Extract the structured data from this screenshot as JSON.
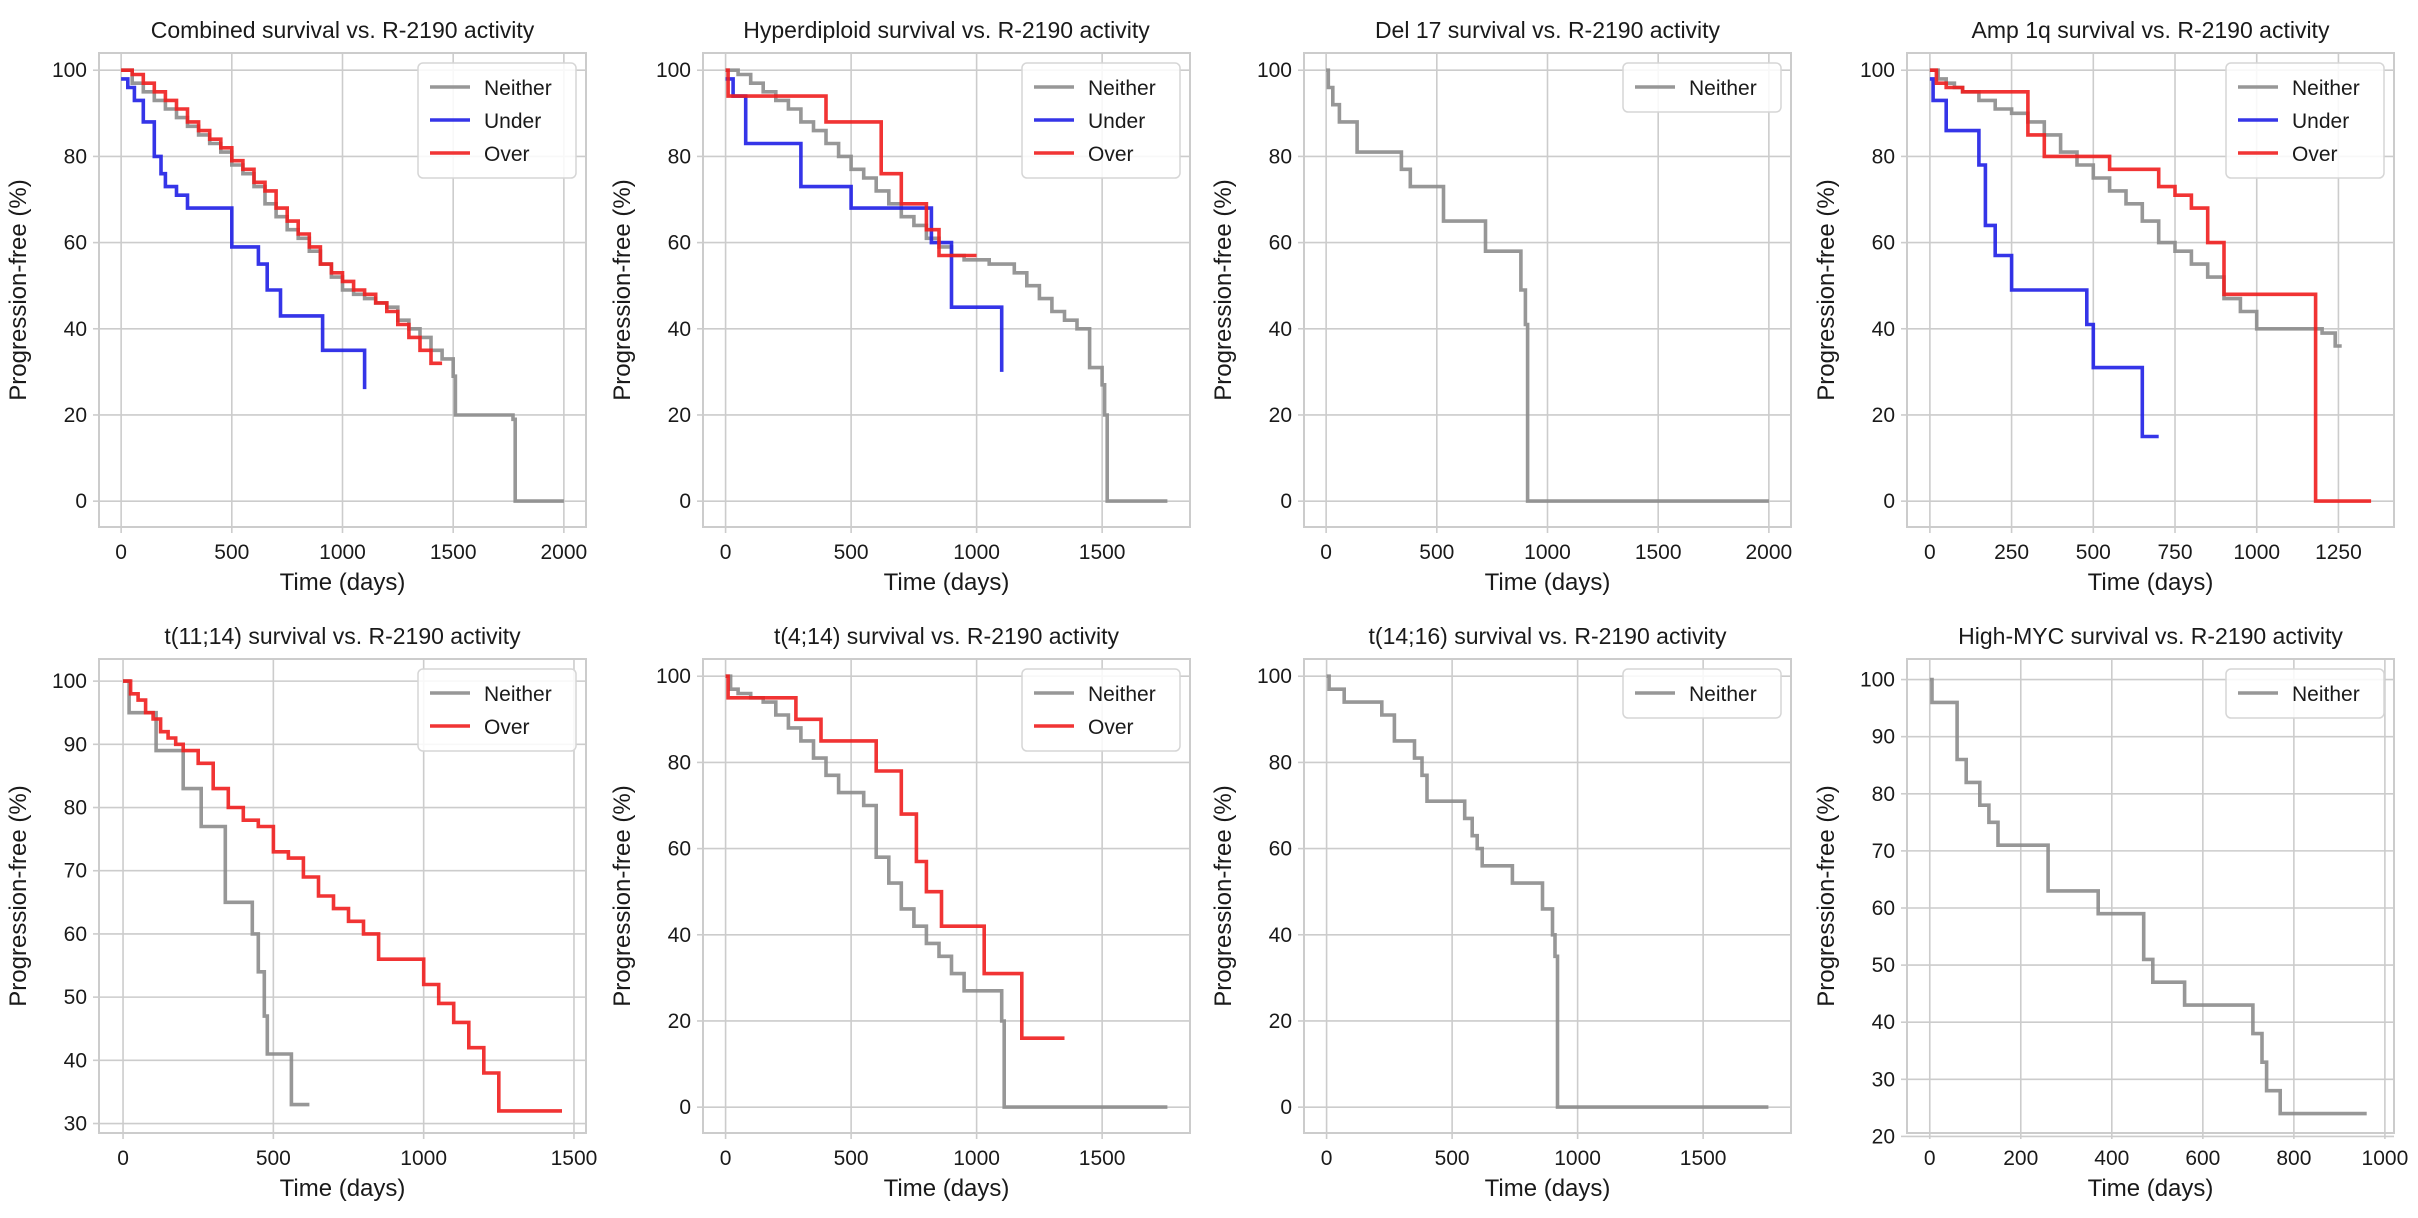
{
  "colors": {
    "Neither": "#8c8c8c",
    "Under": "#1f1fe6",
    "Over": "#f01e1e"
  },
  "chart_data": [
    {
      "type": "line",
      "title": "Combined survival vs. R-2190 activity",
      "xlabel": "Time (days)",
      "ylabel": "Progression-free (%)",
      "xlim": [
        -100,
        2100
      ],
      "ylim": [
        -6,
        104
      ],
      "xticks": [
        0,
        500,
        1000,
        1500,
        2000
      ],
      "yticks": [
        0,
        20,
        40,
        60,
        80,
        100
      ],
      "grid": true,
      "legend_position": "top-right",
      "series": [
        {
          "name": "Neither",
          "x": [
            0,
            50,
            100,
            150,
            200,
            250,
            300,
            350,
            400,
            450,
            500,
            550,
            600,
            650,
            700,
            750,
            800,
            850,
            900,
            950,
            1000,
            1050,
            1100,
            1150,
            1200,
            1250,
            1300,
            1350,
            1400,
            1450,
            1500,
            1510,
            1770,
            1780,
            2000
          ],
          "y": [
            100,
            97,
            95,
            93,
            91,
            89,
            87,
            85,
            83,
            81,
            78,
            76,
            73,
            69,
            66,
            63,
            61,
            58,
            55,
            52,
            49,
            48,
            47,
            46,
            45,
            42,
            40,
            38,
            35,
            33,
            29,
            20,
            19,
            0,
            0
          ]
        },
        {
          "name": "Under",
          "x": [
            0,
            30,
            60,
            100,
            150,
            180,
            200,
            250,
            300,
            350,
            400,
            500,
            620,
            660,
            720,
            910,
            1100
          ],
          "y": [
            98,
            96,
            93,
            88,
            80,
            76,
            73,
            71,
            68,
            68,
            68,
            59,
            55,
            49,
            43,
            35,
            26
          ]
        },
        {
          "name": "Over",
          "x": [
            0,
            50,
            100,
            150,
            200,
            250,
            300,
            350,
            400,
            450,
            500,
            550,
            600,
            650,
            700,
            750,
            800,
            850,
            900,
            950,
            1000,
            1050,
            1100,
            1150,
            1200,
            1250,
            1300,
            1350,
            1400,
            1450
          ],
          "y": [
            100,
            99,
            97,
            95,
            93,
            91,
            88,
            86,
            84,
            82,
            79,
            77,
            74,
            72,
            68,
            65,
            62,
            59,
            55,
            53,
            51,
            49,
            48,
            46,
            44,
            41,
            38,
            35,
            32,
            32
          ]
        }
      ]
    },
    {
      "type": "line",
      "title": "Hyperdiploid survival vs. R-2190 activity",
      "xlabel": "Time (days)",
      "ylabel": "Progression-free (%)",
      "xlim": [
        -90,
        1850
      ],
      "ylim": [
        -6,
        104
      ],
      "xticks": [
        0,
        500,
        1000,
        1500
      ],
      "yticks": [
        0,
        20,
        40,
        60,
        80,
        100
      ],
      "grid": true,
      "legend_position": "top-right",
      "series": [
        {
          "name": "Neither",
          "x": [
            0,
            50,
            100,
            150,
            200,
            250,
            300,
            350,
            400,
            450,
            500,
            550,
            600,
            650,
            700,
            750,
            800,
            850,
            900,
            950,
            1000,
            1050,
            1100,
            1150,
            1200,
            1250,
            1300,
            1350,
            1400,
            1450,
            1500,
            1510,
            1520,
            1760
          ],
          "y": [
            100,
            99,
            97,
            95,
            93,
            91,
            88,
            86,
            83,
            80,
            77,
            75,
            72,
            69,
            66,
            64,
            61,
            59,
            57,
            56,
            56,
            55,
            55,
            53,
            50,
            47,
            44,
            42,
            40,
            31,
            27,
            20,
            0,
            0
          ]
        },
        {
          "name": "Under",
          "x": [
            0,
            30,
            80,
            150,
            300,
            500,
            820,
            900,
            1100
          ],
          "y": [
            98,
            94,
            83,
            83,
            73,
            68,
            60,
            45,
            30
          ]
        },
        {
          "name": "Over",
          "x": [
            0,
            10,
            300,
            400,
            600,
            620,
            700,
            800,
            850,
            1000
          ],
          "y": [
            100,
            94,
            94,
            88,
            88,
            76,
            69,
            63,
            57,
            57
          ]
        }
      ]
    },
    {
      "type": "line",
      "title": "Del 17 survival vs. R-2190 activity",
      "xlabel": "Time (days)",
      "ylabel": "Progression-free (%)",
      "xlim": [
        -100,
        2100
      ],
      "ylim": [
        -6,
        104
      ],
      "xticks": [
        0,
        500,
        1000,
        1500,
        2000
      ],
      "yticks": [
        0,
        20,
        40,
        60,
        80,
        100
      ],
      "grid": true,
      "legend_position": "top-right",
      "series": [
        {
          "name": "Neither",
          "x": [
            0,
            10,
            30,
            60,
            140,
            340,
            380,
            530,
            720,
            880,
            900,
            910,
            2000
          ],
          "y": [
            100,
            96,
            92,
            88,
            81,
            77,
            73,
            65,
            58,
            49,
            41,
            0,
            0
          ]
        }
      ]
    },
    {
      "type": "line",
      "title": "Amp 1q survival vs. R-2190 activity",
      "xlabel": "Time (days)",
      "ylabel": "Progression-free (%)",
      "xlim": [
        -70,
        1420
      ],
      "ylim": [
        -6,
        104
      ],
      "xticks": [
        0,
        250,
        500,
        750,
        1000,
        1250
      ],
      "yticks": [
        0,
        20,
        40,
        60,
        80,
        100
      ],
      "grid": true,
      "legend_position": "top-right",
      "series": [
        {
          "name": "Neither",
          "x": [
            0,
            25,
            50,
            75,
            100,
            150,
            200,
            250,
            300,
            350,
            400,
            450,
            500,
            550,
            600,
            650,
            700,
            750,
            800,
            850,
            900,
            950,
            1000,
            1100,
            1200,
            1240,
            1260
          ],
          "y": [
            100,
            98,
            97,
            96,
            95,
            93,
            91,
            90,
            88,
            85,
            81,
            78,
            75,
            72,
            69,
            65,
            60,
            58,
            55,
            52,
            47,
            44,
            40,
            40,
            39,
            36,
            36
          ]
        },
        {
          "name": "Under",
          "x": [
            0,
            10,
            50,
            150,
            170,
            200,
            250,
            300,
            480,
            500,
            650,
            700
          ],
          "y": [
            98,
            93,
            86,
            78,
            64,
            57,
            49,
            49,
            41,
            31,
            15,
            15
          ]
        },
        {
          "name": "Over",
          "x": [
            0,
            20,
            50,
            100,
            150,
            300,
            350,
            400,
            550,
            700,
            750,
            800,
            850,
            900,
            1180,
            1350
          ],
          "y": [
            100,
            97,
            96,
            95,
            95,
            85,
            80,
            80,
            77,
            73,
            71,
            68,
            60,
            48,
            0,
            0
          ]
        }
      ]
    },
    {
      "type": "line",
      "title": "t(11;14) survival vs. R-2190 activity",
      "xlabel": "Time (days)",
      "ylabel": "Progression-free (%)",
      "xlim": [
        -80,
        1540
      ],
      "ylim": [
        28.5,
        103.5
      ],
      "xticks": [
        0,
        500,
        1000,
        1500
      ],
      "yticks": [
        30,
        40,
        50,
        60,
        70,
        80,
        90,
        100
      ],
      "grid": true,
      "legend_position": "top-right",
      "series": [
        {
          "name": "Neither",
          "x": [
            0,
            20,
            110,
            200,
            260,
            340,
            430,
            450,
            470,
            480,
            560,
            620
          ],
          "y": [
            100,
            95,
            89,
            83,
            77,
            65,
            60,
            54,
            47,
            41,
            33,
            33
          ]
        },
        {
          "name": "Over",
          "x": [
            0,
            25,
            50,
            75,
            100,
            125,
            150,
            175,
            200,
            250,
            300,
            350,
            400,
            450,
            500,
            550,
            600,
            650,
            700,
            750,
            800,
            850,
            1000,
            1050,
            1100,
            1150,
            1200,
            1250,
            1300,
            1460
          ],
          "y": [
            100,
            98,
            97,
            95,
            94,
            92,
            91,
            90,
            89,
            87,
            83,
            80,
            78,
            77,
            73,
            72,
            69,
            66,
            64,
            62,
            60,
            56,
            52,
            49,
            46,
            42,
            38,
            32,
            32,
            32
          ]
        }
      ]
    },
    {
      "type": "line",
      "title": "t(4;14) survival vs. R-2190 activity",
      "xlabel": "Time (days)",
      "ylabel": "Progression-free (%)",
      "xlim": [
        -90,
        1850
      ],
      "ylim": [
        -6,
        104
      ],
      "xticks": [
        0,
        500,
        1000,
        1500
      ],
      "yticks": [
        0,
        20,
        40,
        60,
        80,
        100
      ],
      "grid": true,
      "legend_position": "top-right",
      "series": [
        {
          "name": "Neither",
          "x": [
            0,
            20,
            50,
            100,
            150,
            200,
            250,
            300,
            350,
            400,
            450,
            500,
            550,
            600,
            650,
            700,
            750,
            800,
            850,
            900,
            950,
            1000,
            1050,
            1100,
            1110,
            1760
          ],
          "y": [
            100,
            97,
            96,
            95,
            94,
            91,
            88,
            85,
            81,
            77,
            73,
            73,
            70,
            58,
            52,
            46,
            42,
            38,
            35,
            31,
            27,
            27,
            27,
            20,
            0,
            0
          ]
        },
        {
          "name": "Over",
          "x": [
            0,
            10,
            280,
            380,
            600,
            700,
            760,
            800,
            860,
            1030,
            1180,
            1350
          ],
          "y": [
            100,
            95,
            90,
            85,
            78,
            68,
            57,
            50,
            42,
            31,
            16,
            16
          ]
        }
      ]
    },
    {
      "type": "line",
      "title": "t(14;16) survival vs. R-2190 activity",
      "xlabel": "Time (days)",
      "ylabel": "Progression-free (%)",
      "xlim": [
        -90,
        1850
      ],
      "ylim": [
        -6,
        104
      ],
      "xticks": [
        0,
        500,
        1000,
        1500
      ],
      "yticks": [
        0,
        20,
        40,
        60,
        80,
        100
      ],
      "grid": true,
      "legend_position": "top-right",
      "series": [
        {
          "name": "Neither",
          "x": [
            0,
            10,
            70,
            220,
            270,
            350,
            380,
            400,
            550,
            580,
            600,
            620,
            740,
            860,
            900,
            910,
            920,
            1760
          ],
          "y": [
            100,
            97,
            94,
            91,
            85,
            81,
            77,
            71,
            67,
            63,
            60,
            56,
            52,
            46,
            40,
            35,
            0,
            0
          ]
        }
      ]
    },
    {
      "type": "line",
      "title": "High-MYC survival vs. R-2190 activity",
      "xlabel": "Time (days)",
      "ylabel": "Progression-free (%)",
      "xlim": [
        -50,
        1020
      ],
      "ylim": [
        20.6,
        103.6
      ],
      "xticks": [
        0,
        200,
        400,
        600,
        800,
        1000
      ],
      "yticks": [
        20,
        30,
        40,
        50,
        60,
        70,
        80,
        90,
        100
      ],
      "grid": true,
      "legend_position": "top-right",
      "series": [
        {
          "name": "Neither",
          "x": [
            0,
            5,
            60,
            80,
            110,
            130,
            150,
            260,
            370,
            470,
            490,
            560,
            710,
            730,
            740,
            770,
            960
          ],
          "y": [
            100,
            96,
            86,
            82,
            78,
            75,
            71,
            63,
            59,
            51,
            47,
            43,
            38,
            33,
            28,
            24,
            24
          ]
        }
      ]
    }
  ]
}
